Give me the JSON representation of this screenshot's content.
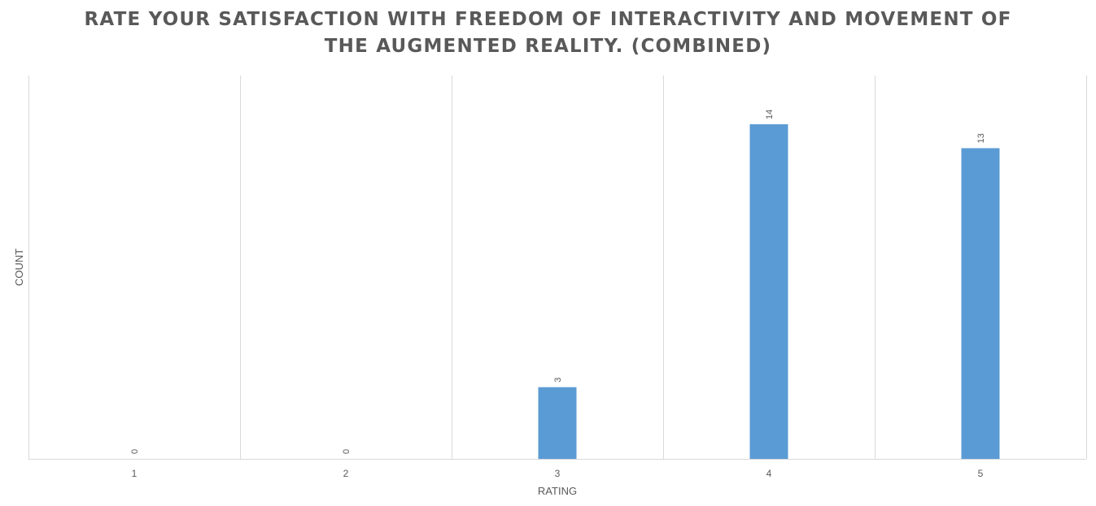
{
  "chart_data": {
    "type": "bar",
    "title_lines": [
      "RATE YOUR SATISFACTION WITH FREEDOM OF INTERACTIVITY AND MOVEMENT OF",
      "THE AUGMENTED REALITY. (COMBINED)"
    ],
    "xlabel": "RATING",
    "ylabel": "COUNT",
    "categories": [
      "1",
      "2",
      "3",
      "4",
      "5"
    ],
    "values": [
      0,
      0,
      3,
      14,
      13
    ],
    "data_labels": [
      "0",
      "0",
      "3",
      "14",
      "13"
    ],
    "ylim": [
      0,
      16
    ],
    "grid": "vertical category separators",
    "legend": "none",
    "colors": {
      "bar": "#5b9bd5",
      "text": "#595959",
      "grid": "#d9d9d9"
    }
  }
}
